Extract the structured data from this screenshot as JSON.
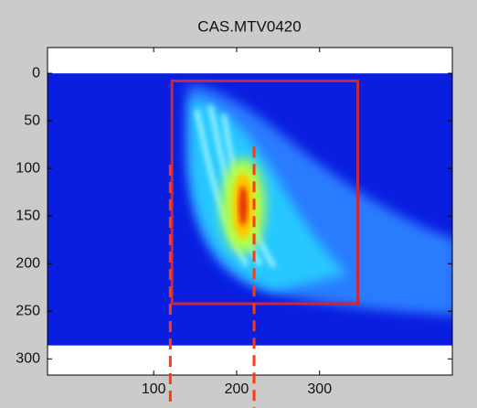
{
  "chart_data": {
    "type": "image",
    "title": "CAS.MTV0420",
    "xlim": [
      -28,
      460
    ],
    "ylim": [
      -27,
      317
    ],
    "y_reversed": true,
    "xticks": [
      100,
      200,
      300
    ],
    "yticks": [
      0,
      50,
      100,
      150,
      200,
      250,
      300
    ],
    "image_extent": {
      "x": [
        -28,
        460
      ],
      "y": [
        0,
        286
      ]
    },
    "colormap": "jet",
    "rectangle": {
      "x": [
        122,
        346
      ],
      "y": [
        8,
        242
      ],
      "color": "#c8283c"
    },
    "dashed_lines": {
      "x": [
        120,
        221
      ],
      "y_start": [
        96,
        77
      ],
      "color": "#ff3a10"
    },
    "grid": false
  }
}
